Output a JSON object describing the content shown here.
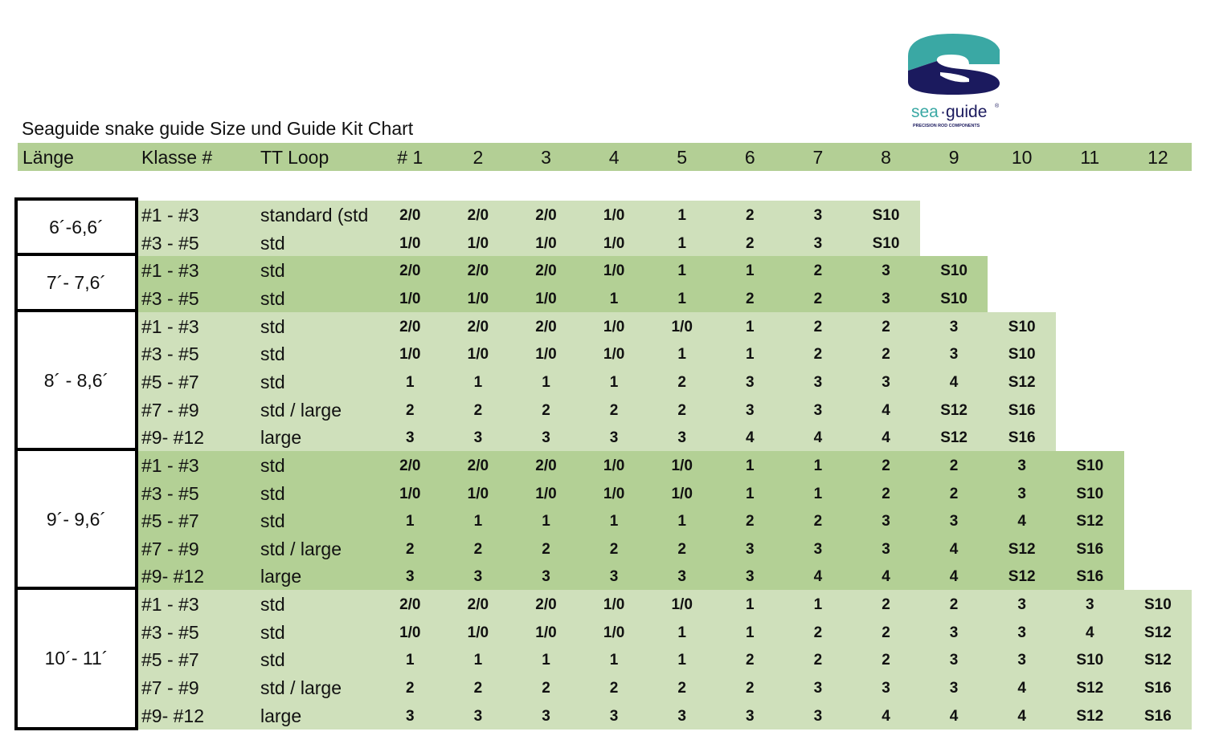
{
  "logo": {
    "brand": "sea·guide",
    "tagline": "PRECISION ROD COMPONENTS",
    "colors": {
      "teal": "#3aa8a4",
      "navy": "#1b1a5e"
    }
  },
  "title": "Seaguide snake guide Size und Guide Kit Chart",
  "header": {
    "length": "Länge",
    "klasse": "Klasse #",
    "loop": "TT Loop",
    "sizes": [
      "# 1",
      "2",
      "3",
      "4",
      "5",
      "6",
      "7",
      "8",
      "9",
      "10",
      "11",
      "12"
    ]
  },
  "colors": {
    "header": "#b3cf95",
    "light": "#cfe0bb",
    "dark": "#b3d095"
  },
  "groups": [
    {
      "length": "6´-6,6´",
      "shade": "light",
      "rows": [
        {
          "klasse": "#1 - #3",
          "loop": "standard (std",
          "sizes": [
            "2/0",
            "2/0",
            "2/0",
            "1/0",
            "1",
            "2",
            "3",
            "S10"
          ]
        },
        {
          "klasse": "#3 - #5",
          "loop": "std",
          "sizes": [
            "1/0",
            "1/0",
            "1/0",
            "1/0",
            "1",
            "2",
            "3",
            "S10"
          ]
        }
      ]
    },
    {
      "length": "7´- 7,6´",
      "shade": "dark",
      "rows": [
        {
          "klasse": "#1 - #3",
          "loop": "std",
          "sizes": [
            "2/0",
            "2/0",
            "2/0",
            "1/0",
            "1",
            "1",
            "2",
            "3",
            "S10"
          ]
        },
        {
          "klasse": "#3 - #5",
          "loop": "std",
          "sizes": [
            "1/0",
            "1/0",
            "1/0",
            "1",
            "1",
            "2",
            "2",
            "3",
            "S10"
          ]
        }
      ]
    },
    {
      "length": "8´ - 8,6´",
      "shade": "light",
      "rows": [
        {
          "klasse": "#1 - #3",
          "loop": "std",
          "sizes": [
            "2/0",
            "2/0",
            "2/0",
            "1/0",
            "1/0",
            "1",
            "2",
            "2",
            "3",
            "S10"
          ]
        },
        {
          "klasse": "#3 - #5",
          "loop": "std",
          "sizes": [
            "1/0",
            "1/0",
            "1/0",
            "1/0",
            "1",
            "1",
            "2",
            "2",
            "3",
            "S10"
          ]
        },
        {
          "klasse": "#5 - #7",
          "loop": "std",
          "sizes": [
            "1",
            "1",
            "1",
            "1",
            "2",
            "3",
            "3",
            "3",
            "4",
            "S12"
          ]
        },
        {
          "klasse": "#7 - #9",
          "loop": "std / large",
          "sizes": [
            "2",
            "2",
            "2",
            "2",
            "2",
            "3",
            "3",
            "4",
            "S12",
            "S16"
          ]
        },
        {
          "klasse": "#9- #12",
          "loop": "large",
          "sizes": [
            "3",
            "3",
            "3",
            "3",
            "3",
            "4",
            "4",
            "4",
            "S12",
            "S16"
          ]
        }
      ]
    },
    {
      "length": "9´- 9,6´",
      "shade": "dark",
      "rows": [
        {
          "klasse": "#1 - #3",
          "loop": "std",
          "sizes": [
            "2/0",
            "2/0",
            "2/0",
            "1/0",
            "1/0",
            "1",
            "1",
            "2",
            "2",
            "3",
            "S10"
          ]
        },
        {
          "klasse": "#3 - #5",
          "loop": "std",
          "sizes": [
            "1/0",
            "1/0",
            "1/0",
            "1/0",
            "1/0",
            "1",
            "1",
            "2",
            "2",
            "3",
            "S10"
          ]
        },
        {
          "klasse": "#5 - #7",
          "loop": "std",
          "sizes": [
            "1",
            "1",
            "1",
            "1",
            "1",
            "2",
            "2",
            "3",
            "3",
            "4",
            "S12"
          ]
        },
        {
          "klasse": "#7 - #9",
          "loop": "std / large",
          "sizes": [
            "2",
            "2",
            "2",
            "2",
            "2",
            "3",
            "3",
            "3",
            "4",
            "S12",
            "S16"
          ]
        },
        {
          "klasse": "#9- #12",
          "loop": "large",
          "sizes": [
            "3",
            "3",
            "3",
            "3",
            "3",
            "3",
            "4",
            "4",
            "4",
            "S12",
            "S16"
          ]
        }
      ]
    },
    {
      "length": "10´- 11´",
      "shade": "light",
      "rows": [
        {
          "klasse": "#1 - #3",
          "loop": "std",
          "sizes": [
            "2/0",
            "2/0",
            "2/0",
            "1/0",
            "1/0",
            "1",
            "1",
            "2",
            "2",
            "3",
            "3",
            "S10"
          ]
        },
        {
          "klasse": "#3 - #5",
          "loop": "std",
          "sizes": [
            "1/0",
            "1/0",
            "1/0",
            "1/0",
            "1",
            "1",
            "2",
            "2",
            "3",
            "3",
            "4",
            "S12"
          ]
        },
        {
          "klasse": "#5 - #7",
          "loop": "std",
          "sizes": [
            "1",
            "1",
            "1",
            "1",
            "1",
            "2",
            "2",
            "2",
            "3",
            "3",
            "S10",
            "S12"
          ]
        },
        {
          "klasse": "#7 - #9",
          "loop": "std / large",
          "sizes": [
            "2",
            "2",
            "2",
            "2",
            "2",
            "2",
            "3",
            "3",
            "3",
            "4",
            "S12",
            "S16"
          ]
        },
        {
          "klasse": "#9- #12",
          "loop": "large",
          "sizes": [
            "3",
            "3",
            "3",
            "3",
            "3",
            "3",
            "3",
            "4",
            "4",
            "4",
            "S12",
            "S16"
          ]
        }
      ]
    }
  ]
}
